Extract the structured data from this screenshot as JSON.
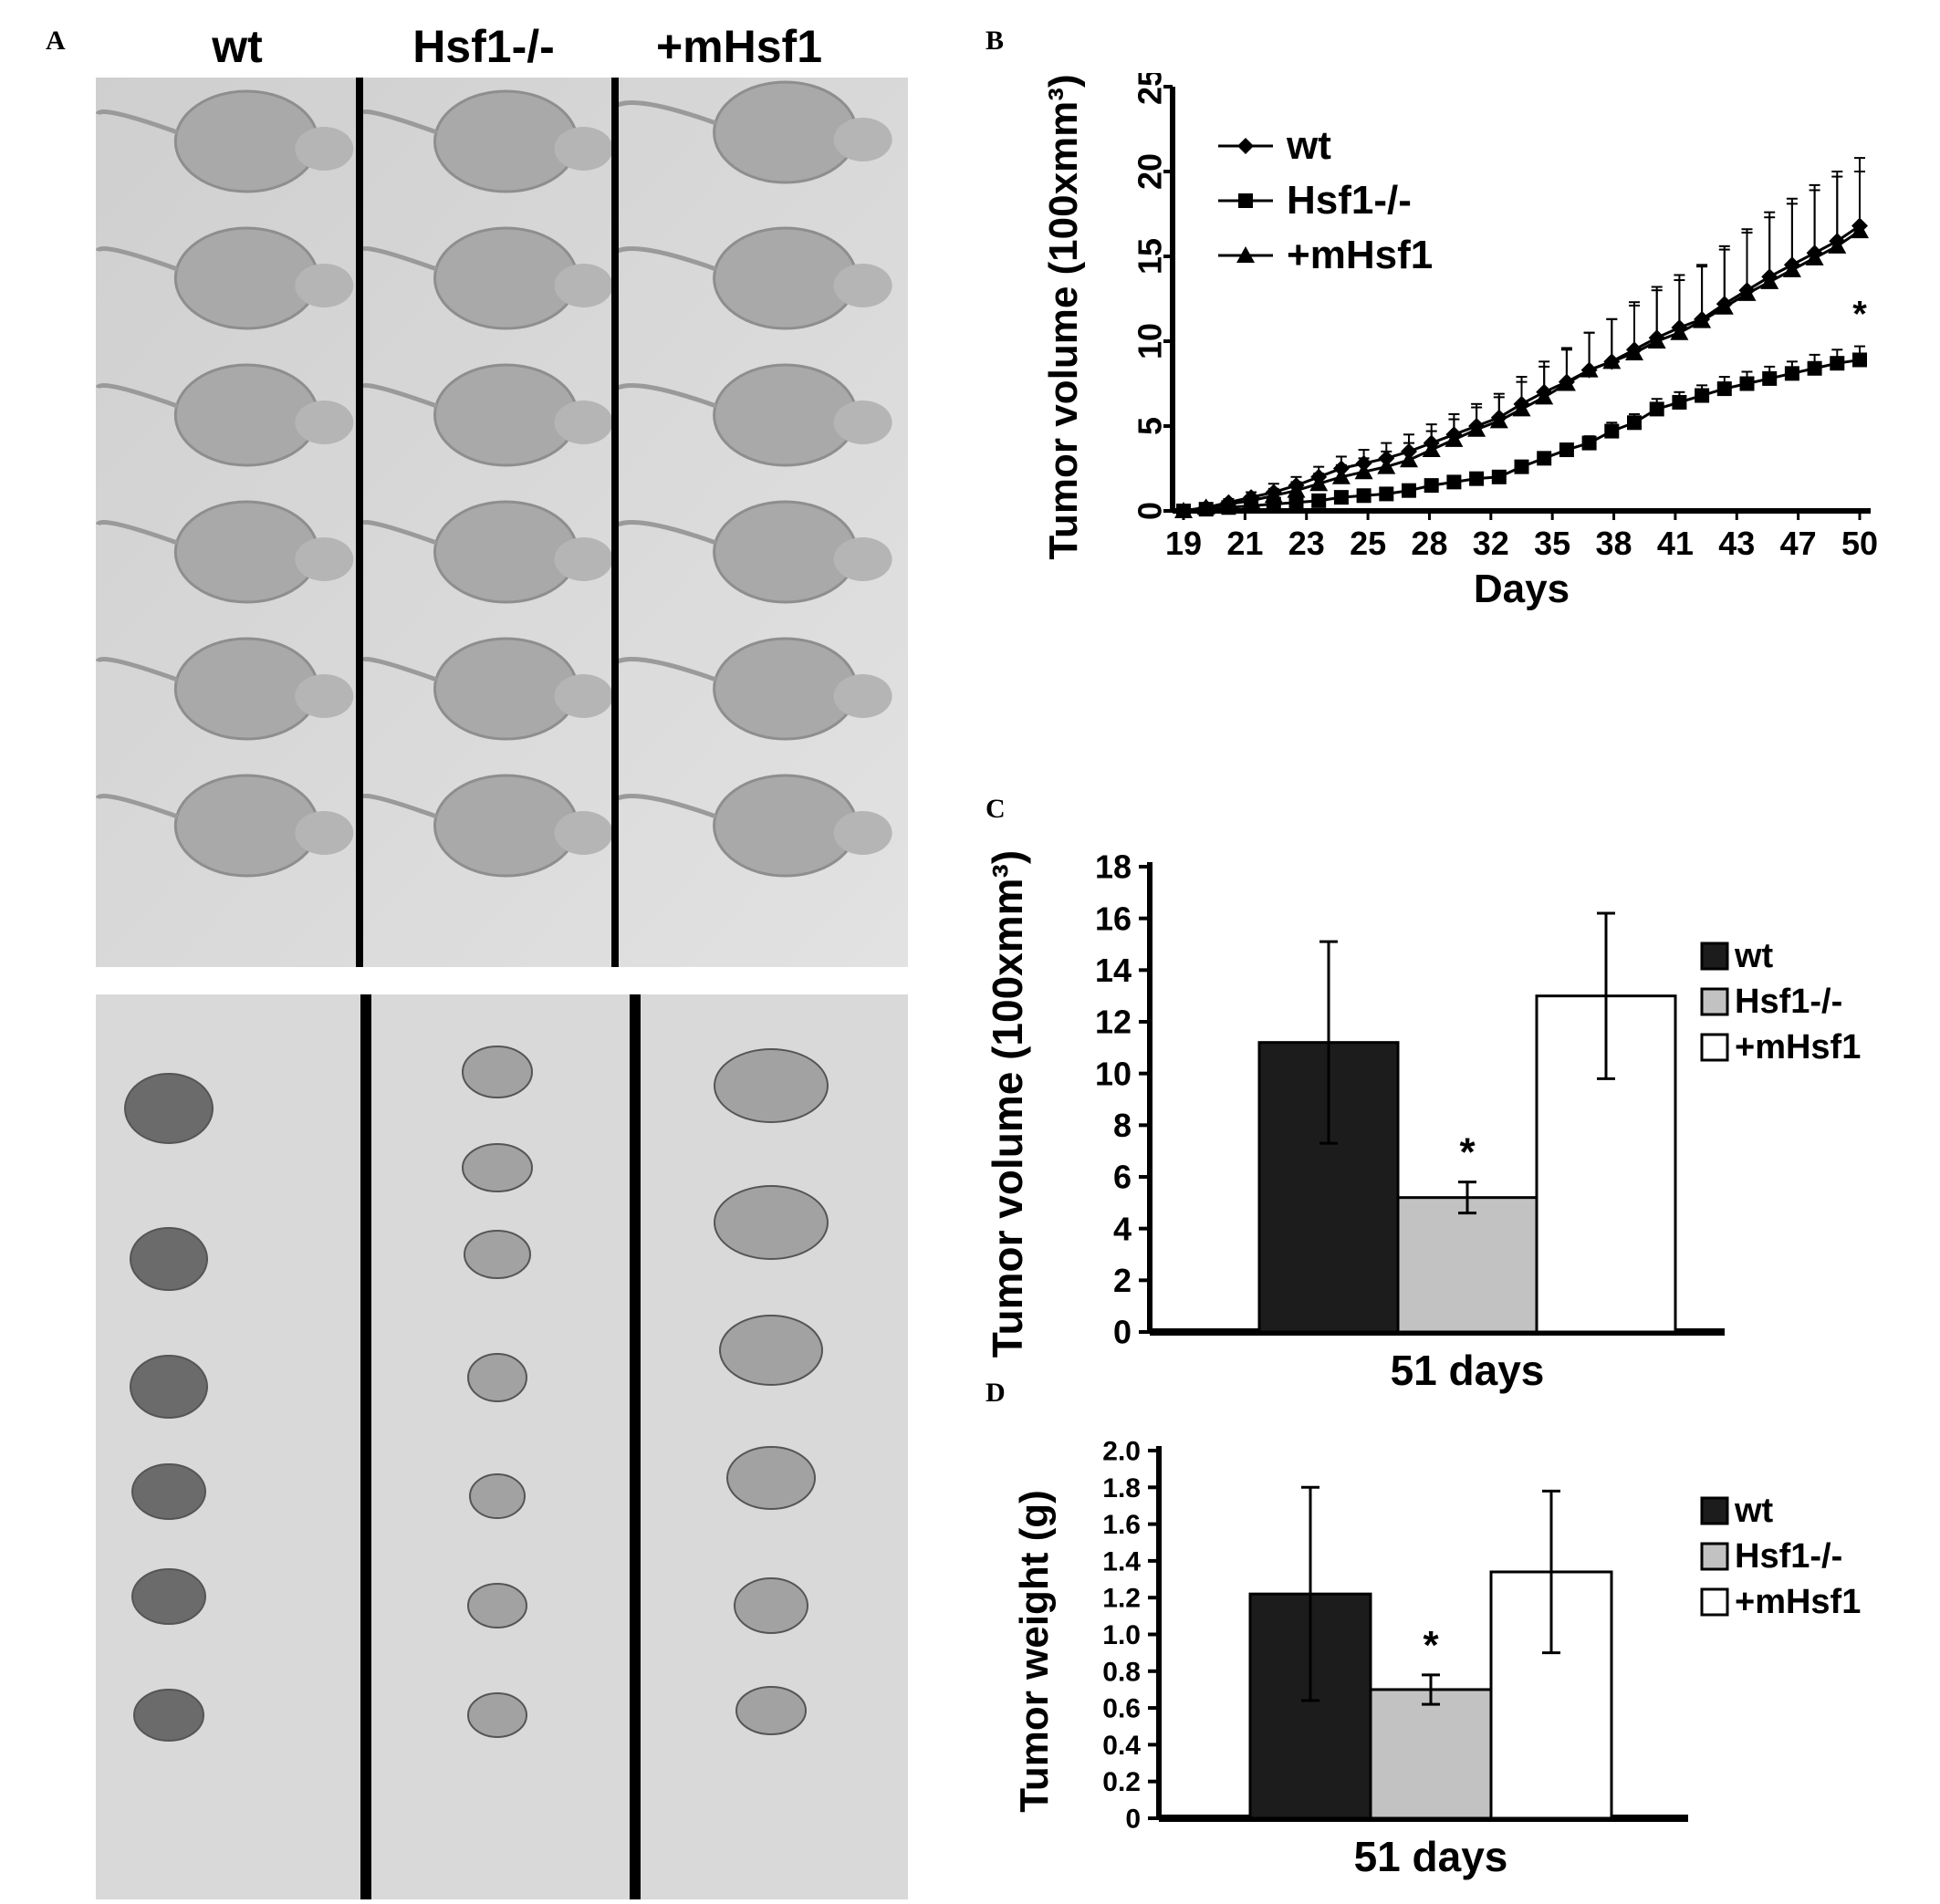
{
  "panels": {
    "A": {
      "letter": "A",
      "groups": [
        "wt",
        "Hsf1-/-",
        "+mHsf1"
      ]
    },
    "B": {
      "letter": "B"
    },
    "C": {
      "letter": "C"
    },
    "D": {
      "letter": "D"
    }
  },
  "colors": {
    "wt_bar": "#1c1c1c",
    "hsf1_bar": "#c2c2c2",
    "mhsf1_bar": "#ffffff",
    "photo_background": "#d6d6d6",
    "photo_light": "#e6e6e6"
  },
  "photo_icons": [
    "mouse-silhouette-icon",
    "tumor-mass-icon"
  ],
  "chart_data": [
    {
      "panel": "B",
      "type": "line",
      "xlabel": "Days",
      "ylabel": "Tumor volume (100xmm³)",
      "ylim": [
        0,
        25
      ],
      "yticks": [
        "0",
        "5",
        "10",
        "15",
        "20",
        "25"
      ],
      "xtick_labels": [
        "19",
        "21",
        "23",
        "25",
        "28",
        "32",
        "35",
        "38",
        "41",
        "43",
        "47",
        "50"
      ],
      "legend": [
        "wt",
        "Hsf1-/-",
        "+mHsf1"
      ],
      "legend_position": "top-left",
      "significance": "*",
      "point_index": [
        0,
        1,
        2,
        3,
        4,
        5,
        6,
        7,
        8,
        9,
        10,
        11,
        12,
        13,
        14,
        15,
        16,
        17,
        18,
        19,
        20,
        21,
        22,
        23,
        24,
        25,
        26,
        27,
        28,
        29,
        30
      ],
      "series": [
        {
          "name": "wt",
          "marker": "diamond",
          "values": [
            0.0,
            0.2,
            0.5,
            0.8,
            1.1,
            1.5,
            2.0,
            2.5,
            2.8,
            3.1,
            3.5,
            4.0,
            4.5,
            5.0,
            5.5,
            6.3,
            7.0,
            7.6,
            8.3,
            8.8,
            9.5,
            10.2,
            10.8,
            11.3,
            12.2,
            13.0,
            13.8,
            14.5,
            15.2,
            15.9,
            16.8
          ],
          "errors": [
            0.0,
            0.1,
            0.2,
            0.3,
            0.5,
            0.5,
            0.6,
            0.7,
            0.8,
            0.9,
            1.0,
            1.1,
            1.2,
            1.3,
            1.4,
            1.6,
            1.8,
            2.0,
            2.2,
            2.5,
            2.8,
            3.0,
            3.1,
            3.2,
            3.4,
            3.6,
            3.8,
            3.9,
            4.0,
            4.1,
            4.0
          ]
        },
        {
          "name": "Hsf1-/-",
          "marker": "square",
          "values": [
            0.0,
            0.1,
            0.2,
            0.3,
            0.4,
            0.5,
            0.6,
            0.8,
            0.9,
            1.0,
            1.2,
            1.5,
            1.7,
            1.9,
            2.0,
            2.6,
            3.1,
            3.6,
            4.0,
            4.7,
            5.2,
            6.0,
            6.4,
            6.8,
            7.2,
            7.5,
            7.8,
            8.1,
            8.4,
            8.7,
            8.9
          ],
          "errors": [
            0.0,
            0.05,
            0.05,
            0.1,
            0.1,
            0.1,
            0.1,
            0.1,
            0.1,
            0.1,
            0.1,
            0.1,
            0.1,
            0.1,
            0.1,
            0.2,
            0.3,
            0.3,
            0.4,
            0.5,
            0.5,
            0.6,
            0.6,
            0.6,
            0.7,
            0.7,
            0.7,
            0.7,
            0.8,
            0.8,
            0.8
          ]
        },
        {
          "name": "+mHsf1",
          "marker": "triangle",
          "values": [
            0.0,
            0.2,
            0.4,
            0.6,
            0.9,
            1.2,
            1.6,
            2.0,
            2.3,
            2.6,
            3.0,
            3.6,
            4.2,
            4.8,
            5.3,
            6.0,
            6.7,
            7.5,
            8.3,
            8.8,
            9.3,
            10.0,
            10.5,
            11.2,
            12.0,
            12.8,
            13.5,
            14.2,
            14.9,
            15.6,
            16.5
          ],
          "errors": [
            0.0,
            0.1,
            0.2,
            0.3,
            0.4,
            0.5,
            0.6,
            0.7,
            0.8,
            0.9,
            1.0,
            1.1,
            1.2,
            1.3,
            1.4,
            1.6,
            1.8,
            2.0,
            2.2,
            2.5,
            2.8,
            3.0,
            3.1,
            3.2,
            3.4,
            3.6,
            3.8,
            3.9,
            4.0,
            4.1,
            3.5
          ]
        }
      ]
    },
    {
      "panel": "C",
      "type": "bar",
      "xlabel": "51 days",
      "ylabel": "Tumor volume (100xmm³)",
      "ylim": [
        0,
        18
      ],
      "yticks": [
        "0",
        "2",
        "4",
        "6",
        "8",
        "10",
        "12",
        "14",
        "16",
        "18"
      ],
      "categories": [
        "wt",
        "Hsf1-/-",
        "+mHsf1"
      ],
      "values": [
        11.2,
        5.2,
        13.0
      ],
      "errors": [
        3.9,
        0.6,
        3.2
      ],
      "significance": [
        "",
        "*",
        ""
      ],
      "legend_position": "right"
    },
    {
      "panel": "D",
      "type": "bar",
      "xlabel": "51 days",
      "ylabel": "Tumor weight (g)",
      "ylim": [
        0,
        2.0
      ],
      "yticks": [
        "0",
        "0.2",
        "0.4",
        "0.6",
        "0.8",
        "1.0",
        "1.2",
        "1.4",
        "1.6",
        "1.8",
        "2.0"
      ],
      "categories": [
        "wt",
        "Hsf1-/-",
        "+mHsf1"
      ],
      "values": [
        1.22,
        0.7,
        1.34
      ],
      "errors": [
        0.58,
        0.08,
        0.44
      ],
      "significance": [
        "",
        "*",
        ""
      ],
      "legend_position": "right"
    }
  ]
}
